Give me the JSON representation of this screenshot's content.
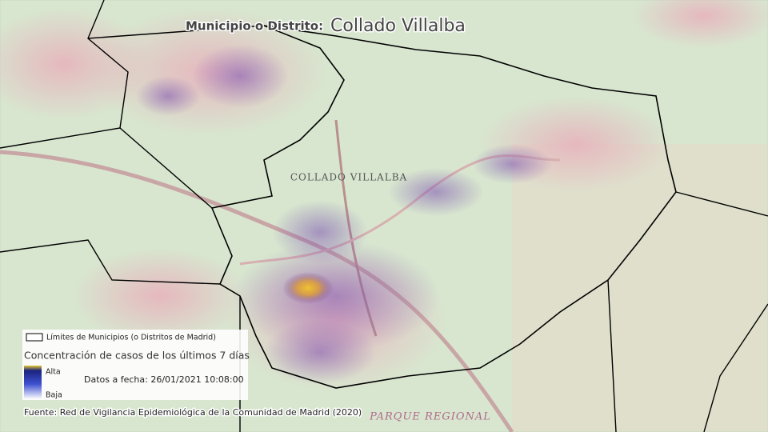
{
  "header": {
    "label": "Municipio o Distrito:",
    "name": "Collado Villalba"
  },
  "map_labels": [
    "COLLADO VILLALBA",
    "PARQUE REGIONAL"
  ],
  "legend": {
    "boundary": "Límites de Municipios (o Distritos de Madrid)",
    "title": "Concentración de casos de los últimos 7 días",
    "high": "Alta",
    "low": "Baja",
    "date": "Datos a fecha: 26/01/2021 10:08:00"
  },
  "source": "Fuente: Red de Vigilancia Epidemiológica de la Comunidad de Madrid (2020)"
}
